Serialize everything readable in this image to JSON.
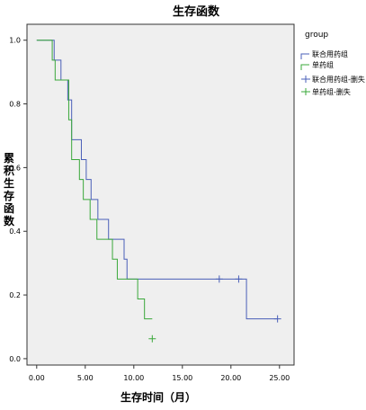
{
  "chart_data": {
    "type": "line",
    "title": "生存函数",
    "xlabel": "生存时间（月）",
    "ylabel": "累积生存函数",
    "xlim": [
      -1.0,
      26.5
    ],
    "ylim": [
      -0.02,
      1.05
    ],
    "xticks": [
      0,
      5,
      10,
      15,
      20,
      25
    ],
    "xtick_labels": [
      "0.00",
      "5.00",
      "10.00",
      "15.00",
      "20.00",
      "25.00"
    ],
    "yticks": [
      0,
      0.2,
      0.4,
      0.6,
      0.8,
      1.0
    ],
    "ytick_labels": [
      "0.0",
      "0.2",
      "0.4",
      "0.6",
      "0.8",
      "1.0"
    ],
    "grid": false,
    "legend": {
      "title": "group",
      "placement": "right",
      "entries": [
        "联合用药组",
        "单药组",
        "联合用药组-删失",
        "单药组-删失"
      ]
    },
    "series": [
      {
        "name": "联合用药组",
        "color": "#4a5fb8",
        "x": [
          0,
          1.0,
          1.8,
          2.5,
          3.2,
          3.6,
          4.6,
          5.1,
          5.6,
          6.3,
          7.4,
          8.1,
          9.0,
          9.3,
          21.6
        ],
        "y": [
          1.0,
          1.0,
          0.9375,
          0.875,
          0.8125,
          0.6875,
          0.625,
          0.5625,
          0.5,
          0.4375,
          0.375,
          0.375,
          0.3125,
          0.25,
          0.125
        ],
        "end_x": 24.8,
        "censored_x": [
          18.8,
          20.8,
          24.8
        ],
        "censored_y": [
          0.25,
          0.25,
          0.125
        ]
      },
      {
        "name": "单药组",
        "color": "#3aa83a",
        "x": [
          0,
          0.7,
          1.6,
          1.9,
          3.3,
          3.6,
          4.4,
          4.8,
          5.5,
          6.2,
          7.8,
          8.3,
          10.4,
          11.1
        ],
        "y": [
          1.0,
          1.0,
          0.9375,
          0.875,
          0.75,
          0.625,
          0.5625,
          0.5,
          0.4375,
          0.375,
          0.3125,
          0.25,
          0.1875,
          0.125
        ],
        "end_x": 11.9,
        "censored_x": [
          11.9
        ],
        "censored_y": [
          0.0625
        ]
      }
    ]
  }
}
